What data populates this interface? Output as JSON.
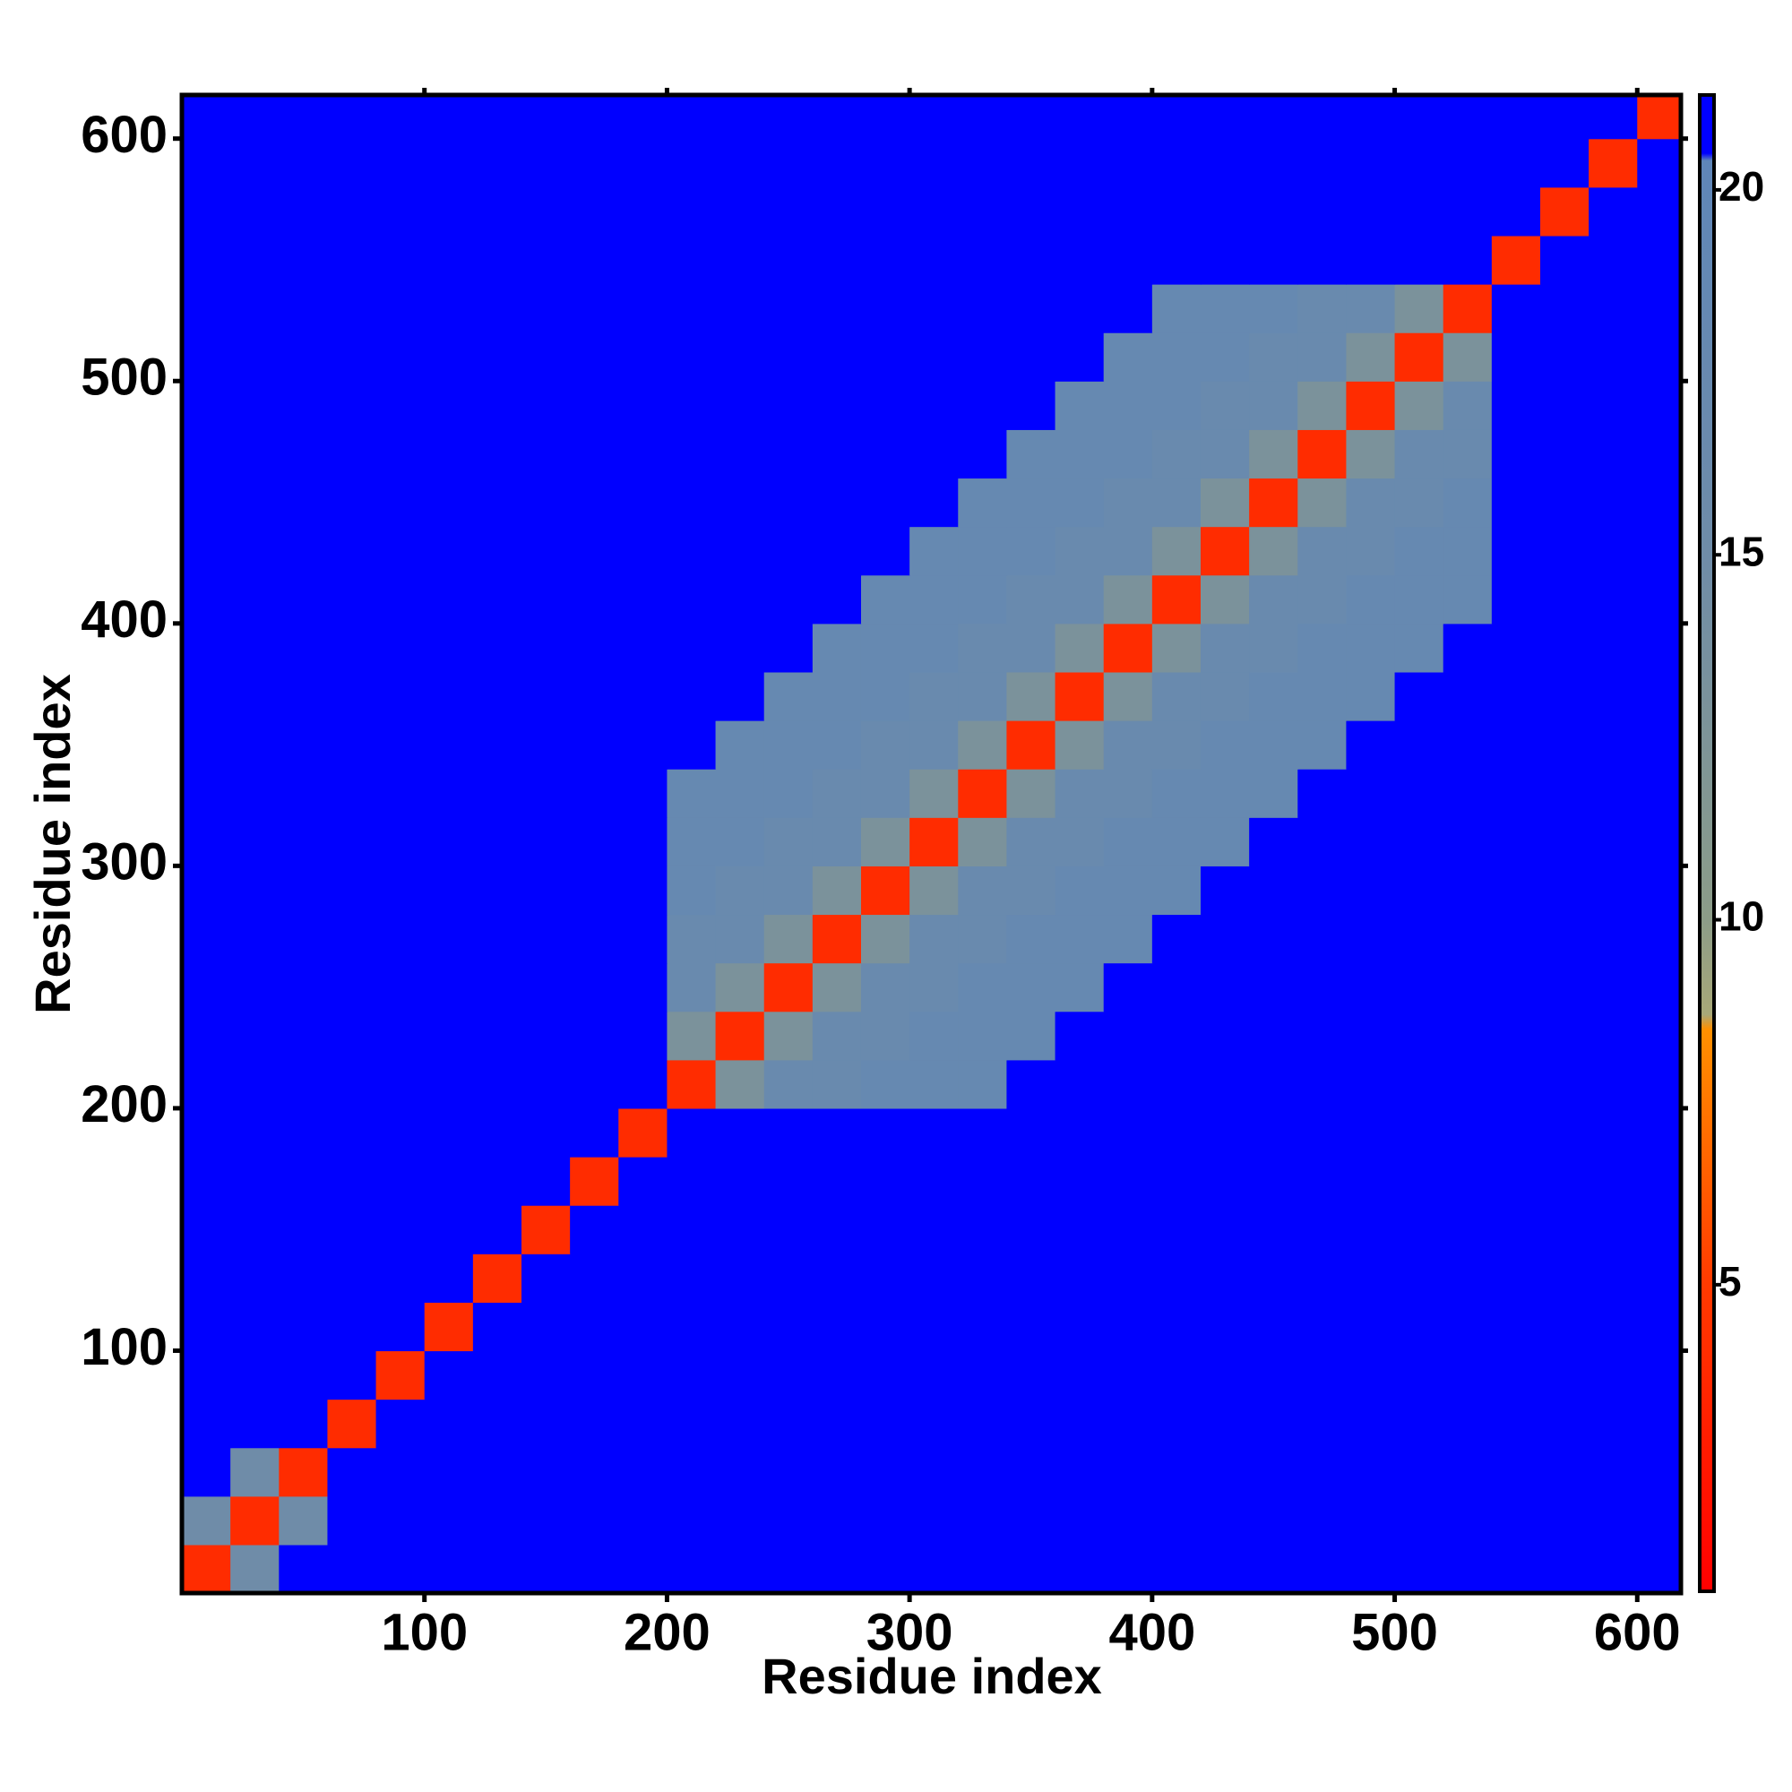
{
  "chart_data": {
    "type": "heatmap",
    "xlabel": "Residue index",
    "ylabel": "Residue index",
    "x": [
      10,
      30,
      50,
      70,
      90,
      110,
      130,
      150,
      170,
      190,
      210,
      230,
      250,
      270,
      290,
      310,
      330,
      350,
      370,
      390,
      410,
      430,
      450,
      470,
      490,
      510,
      530,
      550,
      570,
      590,
      610
    ],
    "y": [
      10,
      30,
      50,
      70,
      90,
      110,
      130,
      150,
      170,
      190,
      210,
      230,
      250,
      270,
      290,
      310,
      330,
      350,
      370,
      390,
      410,
      430,
      450,
      470,
      490,
      510,
      530,
      550,
      570,
      590,
      610
    ],
    "xlim": [
      0,
      618
    ],
    "ylim": [
      0,
      618
    ],
    "xticks": [
      100,
      200,
      300,
      400,
      500,
      600
    ],
    "yticks": [
      100,
      200,
      300,
      400,
      500,
      600
    ],
    "clim": [
      0.8,
      21.3
    ],
    "cticks": [
      5,
      10,
      15,
      20
    ],
    "colorscale": [
      [
        0.8,
        "#ff0000"
      ],
      [
        5,
        "#ff3a00"
      ],
      [
        8.5,
        "#ff9000"
      ],
      [
        8.7,
        "#a8a878"
      ],
      [
        10,
        "#8c9c88"
      ],
      [
        15,
        "#6f8ca8"
      ],
      [
        20.4,
        "#5f86b8"
      ],
      [
        20.5,
        "#0000ff"
      ],
      [
        21.3,
        "#0000ff"
      ]
    ],
    "values": [
      [
        4,
        15,
        21,
        21,
        21,
        21,
        21,
        21,
        21,
        21,
        21,
        21,
        21,
        21,
        21,
        21,
        21,
        21,
        21,
        21,
        21,
        21,
        21,
        21,
        21,
        21,
        21,
        21,
        21,
        21,
        21
      ],
      [
        15,
        4,
        15,
        21,
        21,
        21,
        21,
        21,
        21,
        21,
        21,
        21,
        21,
        21,
        21,
        21,
        21,
        21,
        21,
        21,
        21,
        21,
        21,
        21,
        21,
        21,
        21,
        21,
        21,
        21,
        21
      ],
      [
        21,
        15,
        4,
        21,
        21,
        21,
        21,
        21,
        21,
        21,
        21,
        21,
        21,
        21,
        21,
        21,
        21,
        21,
        21,
        21,
        21,
        21,
        21,
        21,
        21,
        21,
        21,
        21,
        21,
        21,
        21
      ],
      [
        21,
        21,
        21,
        4,
        21,
        21,
        21,
        21,
        21,
        21,
        21,
        21,
        21,
        21,
        21,
        21,
        21,
        21,
        21,
        21,
        21,
        21,
        21,
        21,
        21,
        21,
        21,
        21,
        21,
        21,
        21
      ],
      [
        21,
        21,
        21,
        21,
        4,
        21,
        21,
        21,
        21,
        21,
        21,
        21,
        21,
        21,
        21,
        21,
        21,
        21,
        21,
        21,
        21,
        21,
        21,
        21,
        21,
        21,
        21,
        21,
        21,
        21,
        21
      ],
      [
        21,
        21,
        21,
        21,
        21,
        4,
        21,
        21,
        21,
        21,
        21,
        21,
        21,
        21,
        21,
        21,
        21,
        21,
        21,
        21,
        21,
        21,
        21,
        21,
        21,
        21,
        21,
        21,
        21,
        21,
        21
      ],
      [
        21,
        21,
        21,
        21,
        21,
        21,
        4,
        21,
        21,
        21,
        21,
        21,
        21,
        21,
        21,
        21,
        21,
        21,
        21,
        21,
        21,
        21,
        21,
        21,
        21,
        21,
        21,
        21,
        21,
        21,
        21
      ],
      [
        21,
        21,
        21,
        21,
        21,
        21,
        21,
        4,
        21,
        21,
        21,
        21,
        21,
        21,
        21,
        21,
        21,
        21,
        21,
        21,
        21,
        21,
        21,
        21,
        21,
        21,
        21,
        21,
        21,
        21,
        21
      ],
      [
        21,
        21,
        21,
        21,
        21,
        21,
        21,
        21,
        4,
        21,
        21,
        21,
        21,
        21,
        21,
        21,
        21,
        21,
        21,
        21,
        21,
        21,
        21,
        21,
        21,
        21,
        21,
        21,
        21,
        21,
        21
      ],
      [
        21,
        21,
        21,
        21,
        21,
        21,
        21,
        21,
        21,
        4,
        21,
        21,
        21,
        21,
        21,
        21,
        21,
        21,
        21,
        21,
        21,
        21,
        21,
        21,
        21,
        21,
        21,
        21,
        21,
        21,
        21
      ],
      [
        21,
        21,
        21,
        21,
        21,
        21,
        21,
        21,
        21,
        21,
        4,
        13,
        17,
        17,
        18,
        18,
        18,
        21,
        21,
        21,
        21,
        21,
        21,
        21,
        21,
        21,
        21,
        21,
        21,
        21,
        21
      ],
      [
        21,
        21,
        21,
        21,
        21,
        21,
        21,
        21,
        21,
        21,
        13,
        4,
        13,
        17,
        17,
        18,
        18,
        18,
        21,
        21,
        21,
        21,
        21,
        21,
        21,
        21,
        21,
        21,
        21,
        21,
        21
      ],
      [
        21,
        21,
        21,
        21,
        21,
        21,
        21,
        21,
        21,
        21,
        17,
        13,
        4,
        13,
        17,
        17,
        18,
        18,
        18,
        21,
        21,
        21,
        21,
        21,
        21,
        21,
        21,
        21,
        21,
        21,
        21
      ],
      [
        21,
        21,
        21,
        21,
        21,
        21,
        21,
        21,
        21,
        21,
        17,
        17,
        13,
        4,
        13,
        17,
        17,
        18,
        18,
        18,
        21,
        21,
        21,
        21,
        21,
        21,
        21,
        21,
        21,
        21,
        21
      ],
      [
        21,
        21,
        21,
        21,
        21,
        21,
        21,
        21,
        21,
        21,
        18,
        17,
        17,
        13,
        4,
        13,
        17,
        17,
        18,
        18,
        18,
        21,
        21,
        21,
        21,
        21,
        21,
        21,
        21,
        21,
        21
      ],
      [
        21,
        21,
        21,
        21,
        21,
        21,
        21,
        21,
        21,
        21,
        18,
        18,
        17,
        17,
        13,
        4,
        13,
        17,
        17,
        18,
        18,
        18,
        21,
        21,
        21,
        21,
        21,
        21,
        21,
        21,
        21
      ],
      [
        21,
        21,
        21,
        21,
        21,
        21,
        21,
        21,
        21,
        21,
        18,
        18,
        18,
        17,
        17,
        13,
        4,
        13,
        17,
        17,
        18,
        18,
        18,
        21,
        21,
        21,
        21,
        21,
        21,
        21,
        21
      ],
      [
        21,
        21,
        21,
        21,
        21,
        21,
        21,
        21,
        21,
        21,
        21,
        18,
        18,
        18,
        17,
        17,
        13,
        4,
        13,
        17,
        17,
        18,
        18,
        18,
        21,
        21,
        21,
        21,
        21,
        21,
        21
      ],
      [
        21,
        21,
        21,
        21,
        21,
        21,
        21,
        21,
        21,
        21,
        21,
        21,
        18,
        18,
        18,
        17,
        17,
        13,
        4,
        13,
        17,
        17,
        18,
        18,
        18,
        21,
        21,
        21,
        21,
        21,
        21
      ],
      [
        21,
        21,
        21,
        21,
        21,
        21,
        21,
        21,
        21,
        21,
        21,
        21,
        21,
        18,
        18,
        18,
        17,
        17,
        13,
        4,
        13,
        17,
        17,
        18,
        18,
        18,
        21,
        21,
        21,
        21,
        21
      ],
      [
        21,
        21,
        21,
        21,
        21,
        21,
        21,
        21,
        21,
        21,
        21,
        21,
        21,
        21,
        18,
        18,
        18,
        17,
        17,
        13,
        4,
        13,
        17,
        17,
        18,
        18,
        18,
        21,
        21,
        21,
        21
      ],
      [
        21,
        21,
        21,
        21,
        21,
        21,
        21,
        21,
        21,
        21,
        21,
        21,
        21,
        21,
        21,
        18,
        18,
        18,
        17,
        17,
        13,
        4,
        13,
        17,
        17,
        18,
        18,
        21,
        21,
        21,
        21
      ],
      [
        21,
        21,
        21,
        21,
        21,
        21,
        21,
        21,
        21,
        21,
        21,
        21,
        21,
        21,
        21,
        21,
        18,
        18,
        18,
        17,
        17,
        13,
        4,
        13,
        17,
        17,
        18,
        21,
        21,
        21,
        21
      ],
      [
        21,
        21,
        21,
        21,
        21,
        21,
        21,
        21,
        21,
        21,
        21,
        21,
        21,
        21,
        21,
        21,
        21,
        18,
        18,
        18,
        17,
        17,
        13,
        4,
        13,
        17,
        17,
        21,
        21,
        21,
        21
      ],
      [
        21,
        21,
        21,
        21,
        21,
        21,
        21,
        21,
        21,
        21,
        21,
        21,
        21,
        21,
        21,
        21,
        21,
        21,
        18,
        18,
        18,
        17,
        17,
        13,
        4,
        13,
        17,
        21,
        21,
        21,
        21
      ],
      [
        21,
        21,
        21,
        21,
        21,
        21,
        21,
        21,
        21,
        21,
        21,
        21,
        21,
        21,
        21,
        21,
        21,
        21,
        21,
        18,
        18,
        18,
        17,
        17,
        13,
        4,
        13,
        21,
        21,
        21,
        21
      ],
      [
        21,
        21,
        21,
        21,
        21,
        21,
        21,
        21,
        21,
        21,
        21,
        21,
        21,
        21,
        21,
        21,
        21,
        21,
        21,
        21,
        18,
        18,
        18,
        17,
        17,
        13,
        4,
        21,
        21,
        21,
        21
      ],
      [
        21,
        21,
        21,
        21,
        21,
        21,
        21,
        21,
        21,
        21,
        21,
        21,
        21,
        21,
        21,
        21,
        21,
        21,
        21,
        21,
        21,
        21,
        21,
        21,
        21,
        21,
        21,
        4,
        21,
        21,
        21
      ],
      [
        21,
        21,
        21,
        21,
        21,
        21,
        21,
        21,
        21,
        21,
        21,
        21,
        21,
        21,
        21,
        21,
        21,
        21,
        21,
        21,
        21,
        21,
        21,
        21,
        21,
        21,
        21,
        21,
        4,
        21,
        21
      ],
      [
        21,
        21,
        21,
        21,
        21,
        21,
        21,
        21,
        21,
        21,
        21,
        21,
        21,
        21,
        21,
        21,
        21,
        21,
        21,
        21,
        21,
        21,
        21,
        21,
        21,
        21,
        21,
        21,
        21,
        4,
        21
      ],
      [
        21,
        21,
        21,
        21,
        21,
        21,
        21,
        21,
        21,
        21,
        21,
        21,
        21,
        21,
        21,
        21,
        21,
        21,
        21,
        21,
        21,
        21,
        21,
        21,
        21,
        21,
        21,
        21,
        21,
        21,
        4
      ]
    ]
  }
}
